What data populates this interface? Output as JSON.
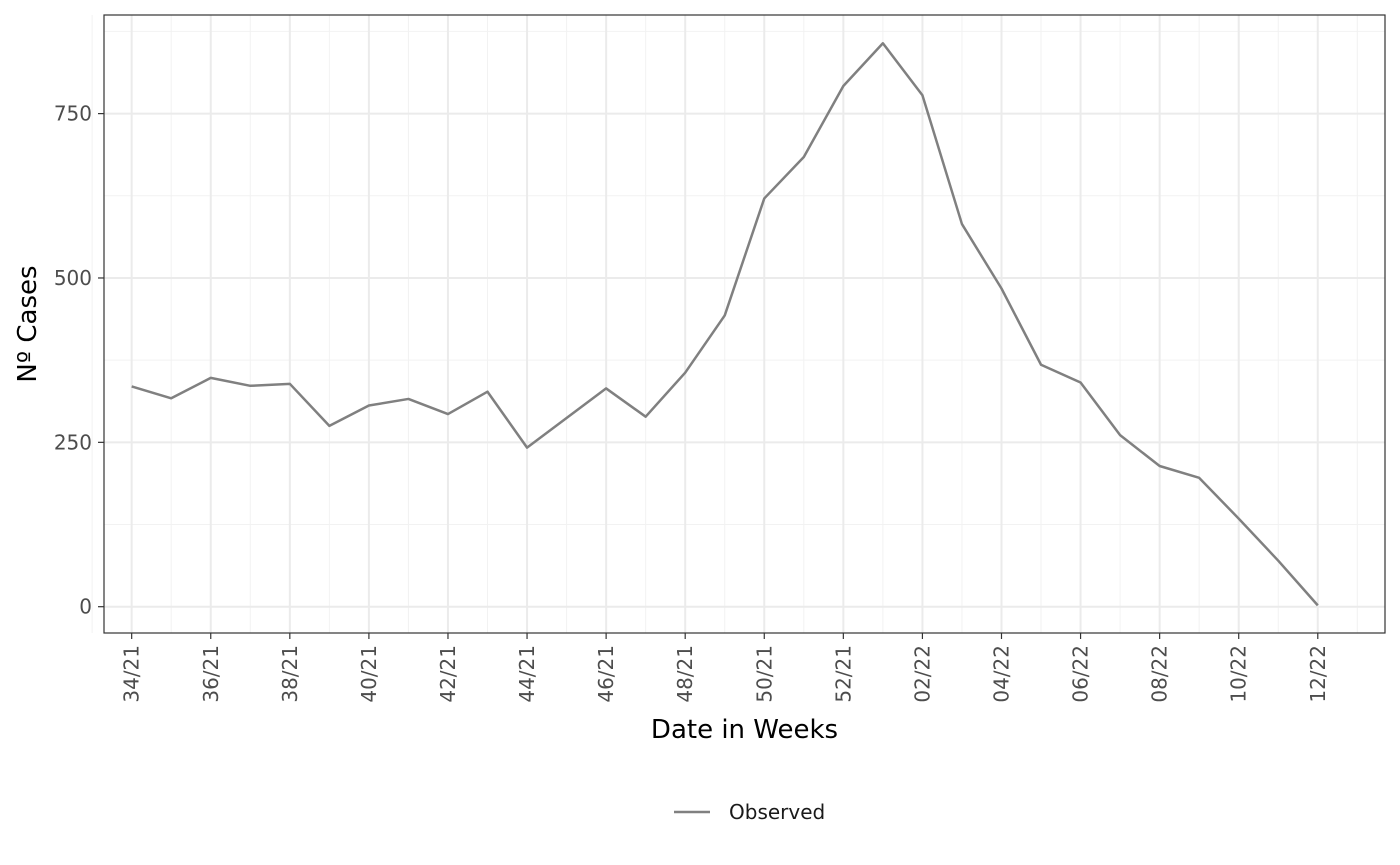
{
  "chart_data": {
    "type": "line",
    "title": "",
    "xlabel": "Date in Weeks",
    "ylabel": "Nº Cases",
    "x": [
      "34/21",
      "35/21",
      "36/21",
      "37/21",
      "38/21",
      "39/21",
      "40/21",
      "41/21",
      "42/21",
      "43/21",
      "44/21",
      "45/21",
      "46/21",
      "47/21",
      "48/21",
      "49/21",
      "50/21",
      "51/21",
      "52/21",
      "01/22",
      "02/22",
      "03/22",
      "04/22",
      "05/22",
      "06/22",
      "07/22",
      "08/22",
      "09/22",
      "10/22",
      "11/22",
      "12/22"
    ],
    "x_tick_labels": [
      "34/21",
      "36/21",
      "38/21",
      "40/21",
      "42/21",
      "44/21",
      "46/21",
      "48/21",
      "50/21",
      "52/21",
      "02/22",
      "04/22",
      "06/22",
      "08/22",
      "10/22",
      "12/22"
    ],
    "y_ticks": [
      0,
      250,
      500,
      750
    ],
    "y_tick_labels": [
      "0",
      "250",
      "500",
      "750"
    ],
    "ylim": [
      -40,
      900
    ],
    "series": [
      {
        "name": "Observed",
        "color": "#808080",
        "values": [
          335,
          317,
          348,
          336,
          339,
          275,
          306,
          316,
          293,
          327,
          242,
          287,
          332,
          289,
          356,
          443,
          621,
          684,
          792,
          857,
          778,
          582,
          484,
          368,
          341,
          261,
          214,
          196,
          134,
          70,
          2
        ]
      }
    ],
    "grid": true,
    "legend": {
      "position": "bottom",
      "entries": [
        "Observed"
      ]
    }
  }
}
